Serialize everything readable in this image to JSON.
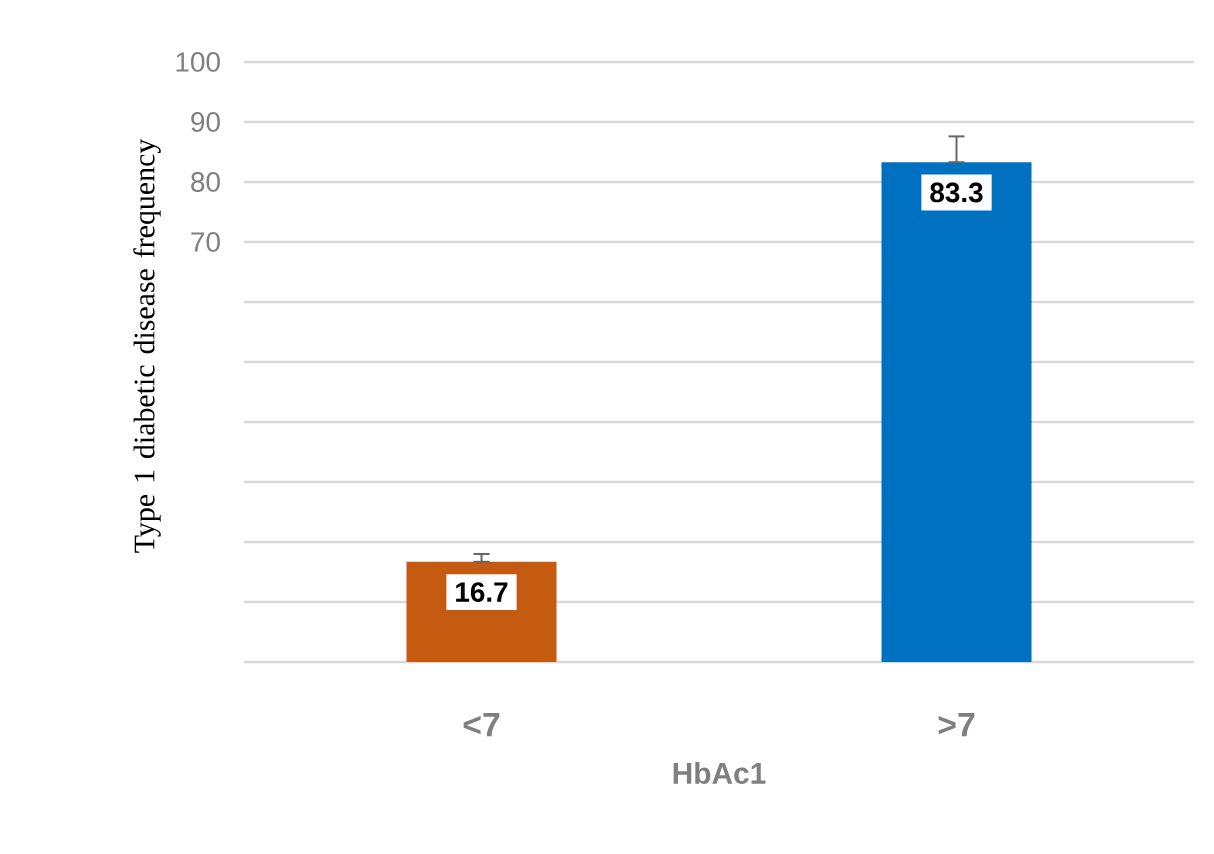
{
  "chart_data": {
    "type": "bar",
    "ylabel": "Type 1 diabetic disease frequency",
    "xlabel": "HbAc1",
    "categories": [
      "<7",
      ">7"
    ],
    "values": [
      16.7,
      83.3
    ],
    "colors": [
      "#c55a11",
      "#0070c0"
    ],
    "errors": [
      [
        16.7,
        18.0
      ],
      [
        83.3,
        87.6
      ]
    ],
    "value_labels": [
      "16.7",
      "83.3"
    ],
    "ylim": [
      0,
      100
    ],
    "yticks": [
      {
        "value": 0,
        "label": null
      },
      {
        "value": 10,
        "label": null
      },
      {
        "value": 20,
        "label": null
      },
      {
        "value": 30,
        "label": null
      },
      {
        "value": 40,
        "label": null
      },
      {
        "value": 50,
        "label": null
      },
      {
        "value": 60,
        "label": null
      },
      70,
      80,
      90,
      100
    ],
    "grid": "y"
  }
}
